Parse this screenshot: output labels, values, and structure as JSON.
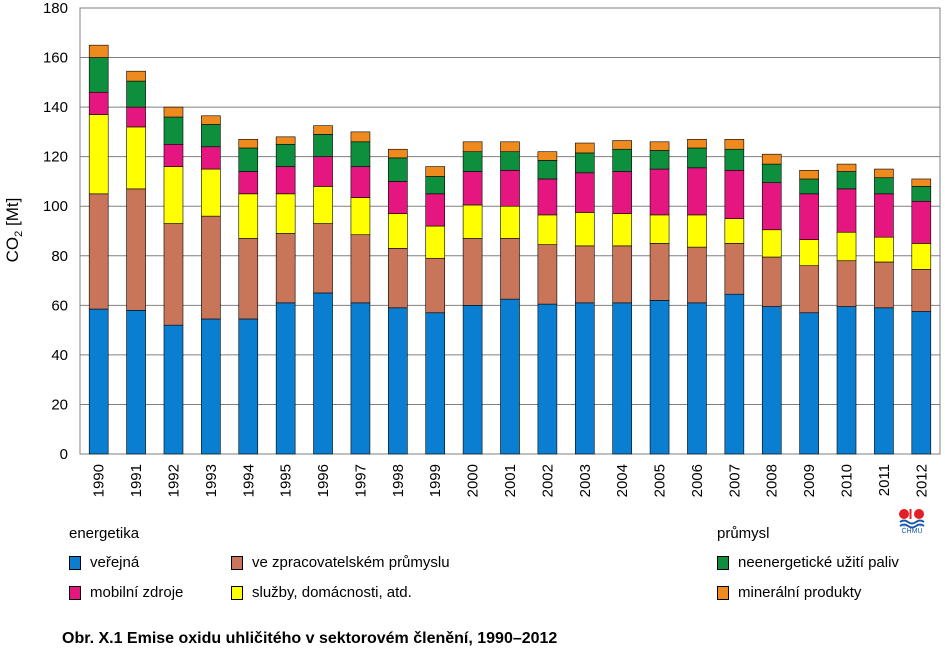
{
  "chart_data": {
    "type": "bar",
    "stacked": true,
    "ylabel_main": "CO",
    "ylabel_sub": "2",
    "ylabel_unit": " [Mt]",
    "ylim": [
      0,
      180
    ],
    "yticks": [
      "0",
      "20",
      "40",
      "60",
      "80",
      "100",
      "120",
      "140",
      "160",
      "180"
    ],
    "grid": true,
    "categories": [
      "1990",
      "1991",
      "1992",
      "1993",
      "1994",
      "1995",
      "1996",
      "1997",
      "1998",
      "1999",
      "2000",
      "2001",
      "2002",
      "2003",
      "2004",
      "2005",
      "2006",
      "2007",
      "2008",
      "2009",
      "2010",
      "2011",
      "2012"
    ],
    "series": [
      {
        "name": "veřejná",
        "color": "#0a7fd1",
        "values": [
          58.5,
          58,
          52,
          54.5,
          54.5,
          61,
          65,
          61,
          59,
          57,
          60,
          62.5,
          60.5,
          61,
          61,
          62,
          61,
          64.5,
          59.5,
          57,
          59.5,
          59,
          57.5
        ]
      },
      {
        "name": "ve zpracovatelském průmyslu",
        "color": "#c9755a",
        "values": [
          46.5,
          49,
          41,
          41.5,
          32.5,
          28,
          28,
          27.5,
          24,
          22,
          27,
          24.5,
          24,
          23,
          23,
          23,
          22.5,
          20.5,
          20,
          19,
          18.5,
          18.5,
          17
        ]
      },
      {
        "name": "služby, domácnosti, atd.",
        "color": "#ffff00",
        "values": [
          32,
          25,
          23,
          19,
          18,
          16,
          15,
          15,
          14,
          13,
          13.5,
          13,
          12,
          13.5,
          13,
          11.5,
          13,
          10,
          11,
          10.5,
          11.5,
          10,
          10.5
        ]
      },
      {
        "name": "mobilní zdroje",
        "color": "#e5167f",
        "values": [
          9,
          8,
          9,
          9,
          9,
          11,
          12,
          12.5,
          13,
          13,
          13.5,
          14.5,
          14.5,
          16,
          17,
          18.5,
          19,
          19.5,
          19,
          18.5,
          17.5,
          17.5,
          17
        ]
      },
      {
        "name": "neenergetické užití paliv",
        "color": "#0d8f3e",
        "values": [
          14,
          10.5,
          11,
          9,
          9.5,
          9,
          9,
          10,
          9.5,
          7,
          8,
          7.5,
          7.5,
          8,
          9,
          7.5,
          8,
          8.5,
          7.5,
          6,
          7,
          6.5,
          6
        ]
      },
      {
        "name": "minerální produkty",
        "color": "#ef8a1f",
        "values": [
          5,
          4,
          4,
          3.5,
          3.5,
          3,
          3.5,
          4,
          3.5,
          4,
          4,
          4,
          3.5,
          4,
          3.5,
          3.5,
          3.5,
          4,
          4,
          3.5,
          3,
          3.5,
          3
        ]
      }
    ]
  },
  "legend": {
    "energetika_title": "energetika",
    "prumysl_title": "průmysl",
    "items": {
      "verejna": "veřejná",
      "zpracovatelsky": "ve zpracovatelském průmyslu",
      "mobilni": "mobilní zdroje",
      "sluzby": "služby, domácnosti, atd.",
      "neenergeticke": "neenergetické užití paliv",
      "mineralni": "minerální produkty"
    },
    "colors": {
      "verejna": "#0a7fd1",
      "zpracovatelsky": "#c9755a",
      "mobilni": "#e5167f",
      "sluzby": "#ffff00",
      "neenergeticke": "#0d8f3e",
      "mineralni": "#ef8a1f"
    }
  },
  "logo": {
    "text": "ČHMÚ",
    "colors": [
      "#e31e24",
      "#1a5aa8"
    ]
  },
  "caption": "Obr. X.1  Emise oxidu uhličitého v sektorovém členění, 1990–2012"
}
